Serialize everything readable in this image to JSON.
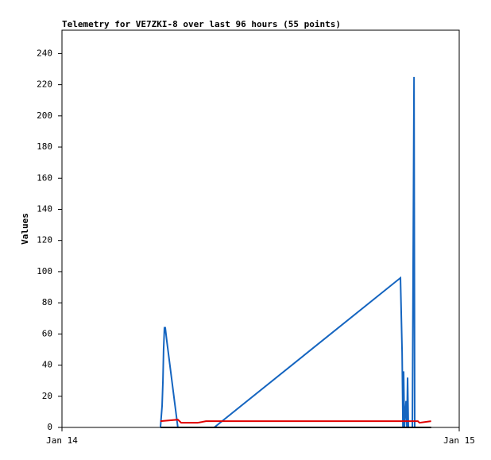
{
  "chart_data": {
    "type": "line",
    "title": "Telemetry for VE7ZKI-8 over last 96 hours (55 points)",
    "y_label": "Values",
    "xlim": [
      0,
      24
    ],
    "xticks": [
      {
        "value": 0,
        "label": "Jan 14"
      },
      {
        "value": 24,
        "label": "Jan 15"
      }
    ],
    "ylim": [
      0,
      255
    ],
    "yticks": [
      0,
      20,
      40,
      60,
      80,
      100,
      120,
      140,
      160,
      180,
      200,
      220,
      240
    ],
    "grid": false,
    "series": [
      {
        "color": "#1565c0",
        "x": [
          5.95,
          6.05,
          6.1,
          6.14,
          6.19,
          6.24,
          6.34,
          7.0,
          9.2,
          20.45,
          20.55,
          20.6,
          20.64,
          20.69,
          20.79,
          20.84,
          20.88,
          20.93,
          21.17,
          21.22,
          21.27,
          21.31
        ],
        "values": [
          0,
          14,
          30,
          50,
          64,
          64,
          55,
          0,
          0,
          96,
          48,
          0,
          36,
          0,
          17,
          0,
          32,
          0,
          0,
          112,
          225,
          0
        ]
      },
      {
        "color": "#e00000",
        "x": [
          5.95,
          7.0,
          7.2,
          8.2,
          8.7,
          21.5,
          21.6,
          22.3
        ],
        "values": [
          4,
          5,
          3,
          3,
          4,
          4,
          3,
          4
        ]
      },
      {
        "color": "#000000",
        "x": [
          5.95,
          22.3
        ],
        "values": [
          0,
          0
        ]
      }
    ]
  }
}
